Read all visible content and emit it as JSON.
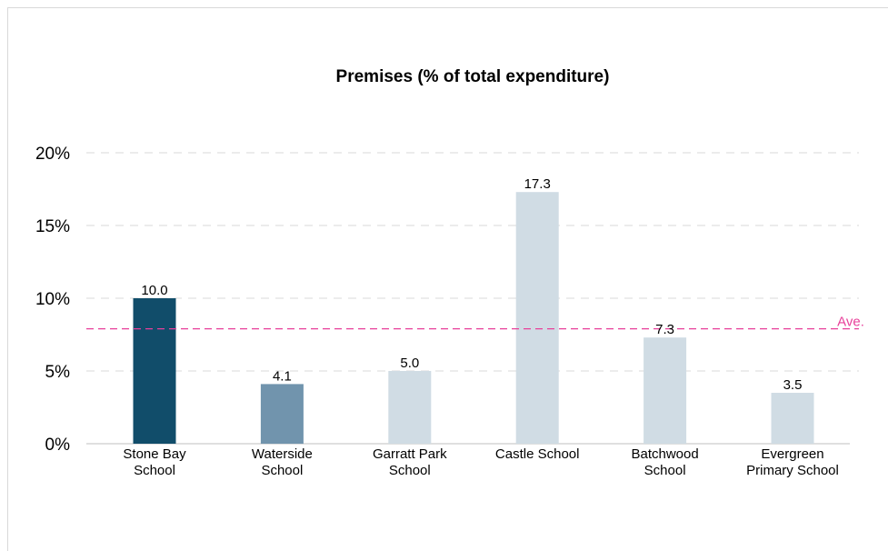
{
  "chart_data": {
    "type": "bar",
    "title": "Premises (% of total expenditure)",
    "categories": [
      [
        "Stone Bay",
        "School"
      ],
      [
        "Waterside",
        "School"
      ],
      [
        "Garratt Park",
        "School"
      ],
      [
        "Castle School"
      ],
      [
        "Batchwood",
        "School"
      ],
      [
        "Evergreen",
        "Primary School"
      ]
    ],
    "values": [
      10.0,
      4.1,
      5.0,
      17.3,
      7.3,
      3.5
    ],
    "value_labels": [
      "10.0",
      "4.1",
      "5.0",
      "17.3",
      "7.3",
      "3.5"
    ],
    "bar_colors": [
      "#114d6a",
      "#7194ad",
      "#d0dce4",
      "#d0dce4",
      "#d0dce4",
      "#d0dce4"
    ],
    "ylim": [
      0,
      20
    ],
    "yticks": [
      0,
      5,
      10,
      15,
      20
    ],
    "ytick_labels": [
      "0%",
      "5%",
      "10%",
      "15%",
      "20%"
    ],
    "average": {
      "value": 7.9,
      "label": "Ave.",
      "color": "#e8409a"
    },
    "grid": true,
    "xlabel": "",
    "ylabel": ""
  }
}
